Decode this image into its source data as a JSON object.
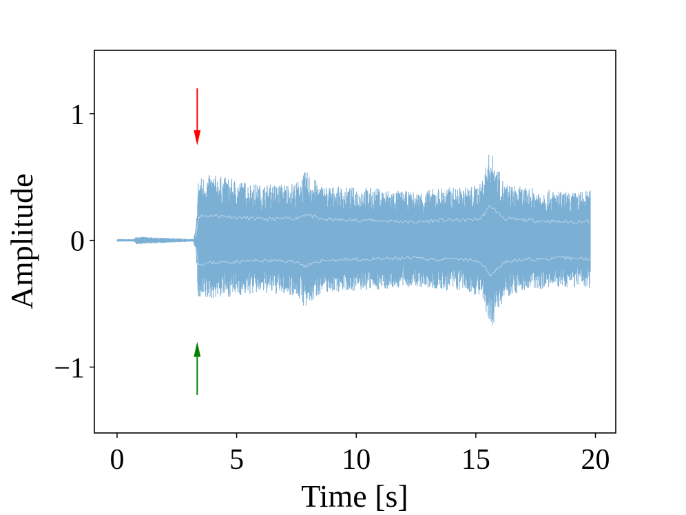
{
  "chart_data": {
    "type": "line",
    "title": "",
    "xlabel": "Time [s]",
    "ylabel": "Amplitude",
    "xlim": [
      -0.95,
      20.85
    ],
    "ylim": [
      -1.52,
      1.5
    ],
    "x_ticks": [
      0,
      5,
      10,
      15,
      20
    ],
    "x_tick_labels": [
      "0",
      "5",
      "10",
      "15",
      "20"
    ],
    "y_ticks": [
      1,
      0,
      -1
    ],
    "y_tick_labels": [
      "1",
      "0",
      "−1"
    ],
    "grid": false,
    "legend": "none",
    "series": [
      {
        "color": "#7bafd4",
        "description_points": {
          "t": [
            0.0,
            0.7,
            0.8,
            3.2,
            3.3,
            3.4,
            4.0,
            5.0,
            6.0,
            7.0,
            7.5,
            7.9,
            8.5,
            9.5,
            10.5,
            11.5,
            12.5,
            13.5,
            14.5,
            15.2,
            15.6,
            16.2,
            17.0,
            18.0,
            19.0,
            19.8
          ],
          "upper_envelope": [
            0.01,
            0.01,
            0.03,
            0.01,
            0.1,
            0.5,
            0.52,
            0.48,
            0.44,
            0.45,
            0.46,
            0.55,
            0.44,
            0.42,
            0.42,
            0.4,
            0.38,
            0.42,
            0.42,
            0.45,
            0.72,
            0.45,
            0.42,
            0.4,
            0.38,
            0.4
          ],
          "lower_envelope": [
            -0.01,
            -0.01,
            -0.03,
            -0.01,
            -0.1,
            -0.5,
            -0.46,
            -0.44,
            -0.42,
            -0.43,
            -0.44,
            -0.55,
            -0.42,
            -0.4,
            -0.4,
            -0.38,
            -0.37,
            -0.4,
            -0.4,
            -0.45,
            -0.72,
            -0.45,
            -0.4,
            -0.38,
            -0.37,
            -0.38
          ]
        }
      }
    ],
    "annotations": [
      {
        "type": "arrow",
        "x": 3.35,
        "y_from": 1.2,
        "y_to": 0.75,
        "color": "#ff0000"
      },
      {
        "type": "arrow",
        "x": 3.35,
        "y_from": -1.22,
        "y_to": -0.8,
        "color": "#008000"
      }
    ]
  }
}
